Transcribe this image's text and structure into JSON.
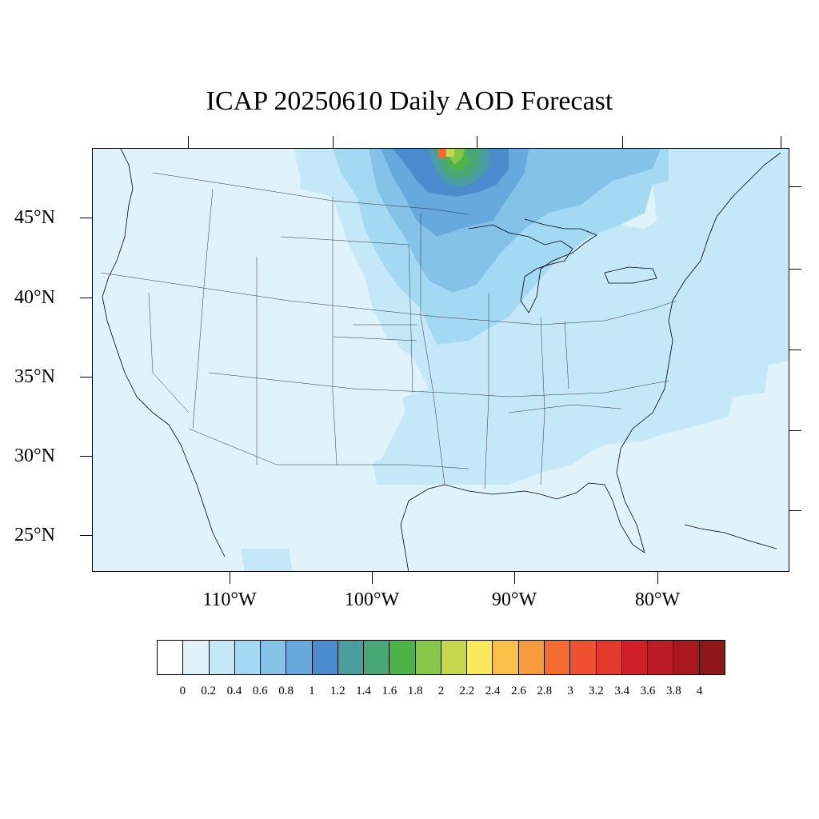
{
  "title": "ICAP 20250610 Daily AOD Forecast",
  "lat_labels": [
    "45°N",
    "40°N",
    "35°N",
    "30°N",
    "25°N"
  ],
  "lon_labels": [
    "110°W",
    "100°W",
    "90°W",
    "80°W"
  ],
  "colorbar": {
    "colors": [
      "#ffffff",
      "#e0f3fb",
      "#c4e8f8",
      "#a4d9f3",
      "#84c2e8",
      "#67a9dc",
      "#4a8ccd",
      "#4a9ea0",
      "#48a774",
      "#4cb447",
      "#86c64a",
      "#c3d84e",
      "#f7e95b",
      "#f8c048",
      "#f69a3e",
      "#f46b31",
      "#ef5030",
      "#e13a2c",
      "#d12029",
      "#bb1c25",
      "#a8191f",
      "#8f161b"
    ],
    "labels": [
      "0",
      "0.2",
      "0.4",
      "0.6",
      "0.8",
      "1",
      "1.2",
      "1.4",
      "1.6",
      "1.8",
      "2",
      "2.2",
      "2.4",
      "2.6",
      "2.8",
      "3",
      "3.2",
      "3.4",
      "3.6",
      "3.8",
      "4"
    ]
  }
}
